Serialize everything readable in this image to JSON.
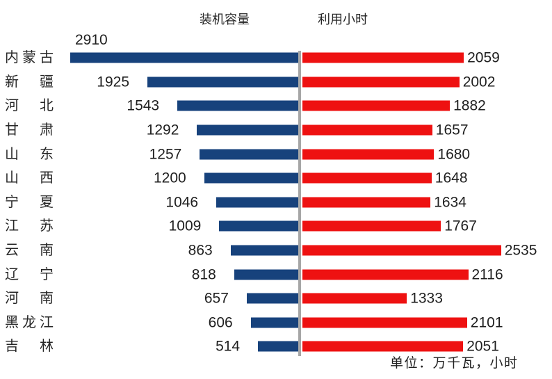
{
  "colors": {
    "capacity_bar": "#17427C",
    "hours_bar": "#EE1111",
    "axis_line": "#A6A6A6",
    "text": "#1F1F1F"
  },
  "chart_data": {
    "type": "bar",
    "subtype": "diverging-horizontal-tornado",
    "title": "",
    "categories": [
      "内蒙古",
      "新疆",
      "河北",
      "甘肃",
      "山东",
      "山西",
      "宁夏",
      "江苏",
      "云南",
      "辽宁",
      "河南",
      "黑龙江",
      "吉林"
    ],
    "series": [
      {
        "name": "装机容量",
        "side": "left",
        "unit": "万千瓦",
        "color": "#17427C",
        "values": [
          2910,
          1925,
          1543,
          1292,
          1257,
          1200,
          1046,
          1009,
          863,
          818,
          657,
          606,
          514
        ]
      },
      {
        "name": "利用小时",
        "side": "right",
        "unit": "小时",
        "color": "#EE1111",
        "values": [
          2059,
          2002,
          1882,
          1657,
          1680,
          1648,
          1634,
          1767,
          2535,
          2116,
          1333,
          2101,
          2051
        ]
      }
    ],
    "value_labels": "shown outside bar ends",
    "axes": "no numeric axis shown; shared gray center baseline; no gridlines",
    "legend_position": "top, as plain text headers above each side",
    "unit_note": "单位：万千瓦，小时"
  }
}
